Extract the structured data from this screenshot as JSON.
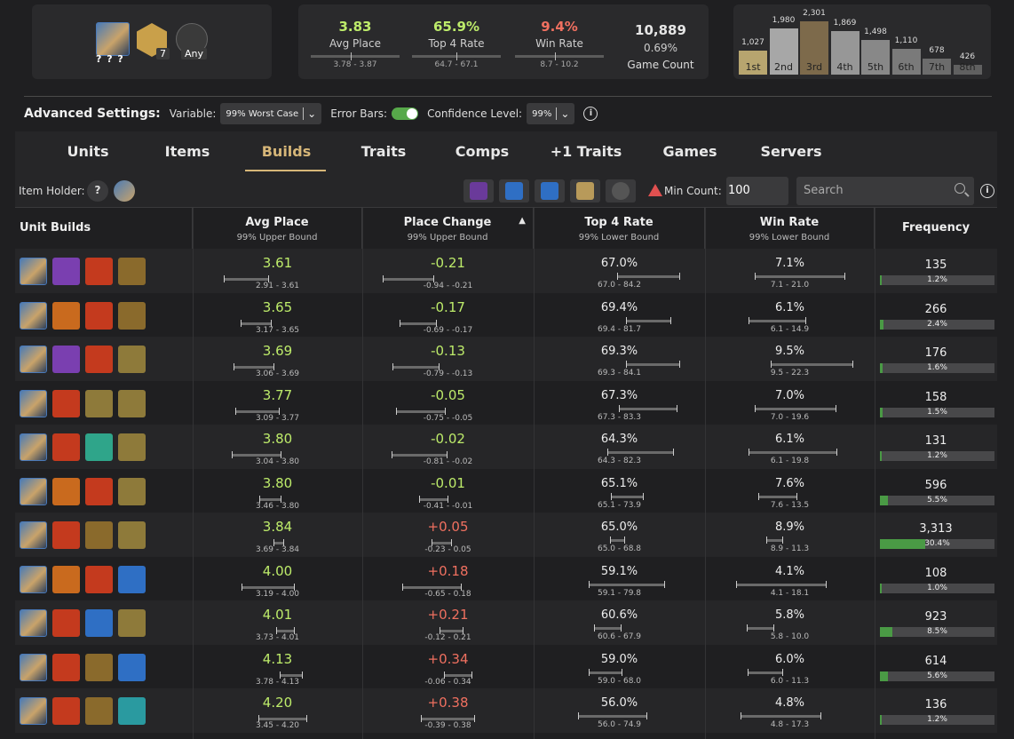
{
  "header": {
    "unit_icon_label": "? ? ?",
    "badge1_count": "7",
    "badge2_label": "Any",
    "stats": [
      {
        "value": "3.83",
        "label": "Avg Place",
        "range": "3.78 - 3.87",
        "color": "#bdeb6a",
        "tick": 0.45
      },
      {
        "value": "65.9%",
        "label": "Top 4 Rate",
        "range": "64.7 - 67.1",
        "color": "#bdeb6a",
        "tick": 0.5
      },
      {
        "value": "9.4%",
        "label": "Win Rate",
        "range": "8.7 - 10.2",
        "color": "#f07060",
        "tick": 0.45
      }
    ],
    "game_count": "10,889",
    "game_pct": "0.69%",
    "game_label": "Game Count",
    "histogram": [
      {
        "label": "1st",
        "value": "1,027",
        "n": 1027,
        "color": "#b7a56f"
      },
      {
        "label": "2nd",
        "value": "1,980",
        "n": 1980,
        "color": "#a7a7a7"
      },
      {
        "label": "3rd",
        "value": "2,301",
        "n": 2301,
        "color": "#7d6a4b"
      },
      {
        "label": "4th",
        "value": "1,869",
        "n": 1869,
        "color": "#979797"
      },
      {
        "label": "5th",
        "value": "1,498",
        "n": 1498,
        "color": "#888888"
      },
      {
        "label": "6th",
        "value": "1,110",
        "n": 1110,
        "color": "#7a7a7a"
      },
      {
        "label": "7th",
        "value": "678",
        "n": 678,
        "color": "#6c6c6c"
      },
      {
        "label": "8th",
        "value": "426",
        "n": 426,
        "color": "#606060"
      }
    ]
  },
  "settings": {
    "title": "Advanced Settings:",
    "variable_label": "Variable:",
    "variable_value": "99% Worst Case",
    "error_bars_label": "Error Bars:",
    "confidence_label": "Confidence Level:",
    "confidence_value": "99%"
  },
  "tabs": [
    "Units",
    "Items",
    "Builds",
    "Traits",
    "Comps",
    "+1 Traits",
    "Games",
    "Servers"
  ],
  "toolbar": {
    "item_holder_label": "Item Holder:",
    "unknown_symbol": "?",
    "min_count_label": "Min Count:",
    "min_count_value": "100",
    "search_placeholder": "Search"
  },
  "columns": [
    {
      "title": "Unit Builds",
      "sub": ""
    },
    {
      "title": "Avg Place",
      "sub": "99% Upper Bound"
    },
    {
      "title": "Place Change",
      "sub": "99% Upper Bound",
      "sort": "▲"
    },
    {
      "title": "Top 4 Rate",
      "sub": "99% Lower Bound"
    },
    {
      "title": "Win Rate",
      "sub": "99% Lower Bound"
    },
    {
      "title": "Frequency",
      "sub": ""
    }
  ],
  "rows": [
    {
      "items": [
        "#7a3fb0",
        "#c43a1e",
        "#8a6a2c"
      ],
      "avg": "3.61",
      "avg_r": "2.91 - 3.61",
      "chg": "-0.21",
      "chg_r": "-0.94 - -0.21",
      "t4": "67.0%",
      "t4_r": "67.0 - 84.2",
      "win": "7.1%",
      "win_r": "7.1 - 21.0",
      "freq": "135",
      "freq_pct": "1.2%",
      "f": 0.012
    },
    {
      "items": [
        "#c96a1e",
        "#c43a1e",
        "#8a6a2c"
      ],
      "avg": "3.65",
      "avg_r": "3.17 - 3.65",
      "chg": "-0.17",
      "chg_r": "-0.69 - -0.17",
      "t4": "69.4%",
      "t4_r": "69.4 - 81.7",
      "win": "6.1%",
      "win_r": "6.1 - 14.9",
      "freq": "266",
      "freq_pct": "2.4%",
      "f": 0.024
    },
    {
      "items": [
        "#7a3fb0",
        "#c43a1e",
        "#8e7a3a"
      ],
      "avg": "3.69",
      "avg_r": "3.06 - 3.69",
      "chg": "-0.13",
      "chg_r": "-0.79 - -0.13",
      "t4": "69.3%",
      "t4_r": "69.3 - 84.1",
      "win": "9.5%",
      "win_r": "9.5 - 22.3",
      "freq": "176",
      "freq_pct": "1.6%",
      "f": 0.016
    },
    {
      "items": [
        "#c43a1e",
        "#8e7a3a",
        "#8e7a3a"
      ],
      "avg": "3.77",
      "avg_r": "3.09 - 3.77",
      "chg": "-0.05",
      "chg_r": "-0.75 - -0.05",
      "t4": "67.3%",
      "t4_r": "67.3 - 83.3",
      "win": "7.0%",
      "win_r": "7.0 - 19.6",
      "freq": "158",
      "freq_pct": "1.5%",
      "f": 0.015
    },
    {
      "items": [
        "#c43a1e",
        "#2fa58a",
        "#8e7a3a"
      ],
      "avg": "3.80",
      "avg_r": "3.04 - 3.80",
      "chg": "-0.02",
      "chg_r": "-0.81 - -0.02",
      "t4": "64.3%",
      "t4_r": "64.3 - 82.3",
      "win": "6.1%",
      "win_r": "6.1 - 19.8",
      "freq": "131",
      "freq_pct": "1.2%",
      "f": 0.012
    },
    {
      "items": [
        "#c96a1e",
        "#c43a1e",
        "#8e7a3a"
      ],
      "avg": "3.80",
      "avg_r": "3.46 - 3.80",
      "chg": "-0.01",
      "chg_r": "-0.41 - -0.01",
      "t4": "65.1%",
      "t4_r": "65.1 - 73.9",
      "win": "7.6%",
      "win_r": "7.6 - 13.5",
      "freq": "596",
      "freq_pct": "5.5%",
      "f": 0.055
    },
    {
      "items": [
        "#c43a1e",
        "#8a6a2c",
        "#8e7a3a"
      ],
      "avg": "3.84",
      "avg_r": "3.69 - 3.84",
      "chg": "+0.05",
      "chg_r": "-0.23 - 0.05",
      "t4": "65.0%",
      "t4_r": "65.0 - 68.8",
      "win": "8.9%",
      "win_r": "8.9 - 11.3",
      "freq": "3,313",
      "freq_pct": "30.4%",
      "f": 0.304
    },
    {
      "items": [
        "#c96a1e",
        "#c43a1e",
        "#2f6fc4"
      ],
      "avg": "4.00",
      "avg_r": "3.19 - 4.00",
      "chg": "+0.18",
      "chg_r": "-0.65 - 0.18",
      "t4": "59.1%",
      "t4_r": "59.1 - 79.8",
      "win": "4.1%",
      "win_r": "4.1 - 18.1",
      "freq": "108",
      "freq_pct": "1.0%",
      "f": 0.01
    },
    {
      "items": [
        "#c43a1e",
        "#2f6fc4",
        "#8e7a3a"
      ],
      "avg": "4.01",
      "avg_r": "3.73 - 4.01",
      "chg": "+0.21",
      "chg_r": "-0.12 - 0.21",
      "t4": "60.6%",
      "t4_r": "60.6 - 67.9",
      "win": "5.8%",
      "win_r": "5.8 - 10.0",
      "freq": "923",
      "freq_pct": "8.5%",
      "f": 0.085
    },
    {
      "items": [
        "#c43a1e",
        "#8a6a2c",
        "#2f6fc4"
      ],
      "avg": "4.13",
      "avg_r": "3.78 - 4.13",
      "chg": "+0.34",
      "chg_r": "-0.06 - 0.34",
      "t4": "59.0%",
      "t4_r": "59.0 - 68.0",
      "win": "6.0%",
      "win_r": "6.0 - 11.3",
      "freq": "614",
      "freq_pct": "5.6%",
      "f": 0.056
    },
    {
      "items": [
        "#c43a1e",
        "#8a6a2c",
        "#2a9aa0"
      ],
      "avg": "4.20",
      "avg_r": "3.45 - 4.20",
      "chg": "+0.38",
      "chg_r": "-0.39 - 0.38",
      "t4": "56.0%",
      "t4_r": "56.0 - 74.9",
      "win": "4.8%",
      "win_r": "4.8 - 17.3",
      "freq": "136",
      "freq_pct": "1.2%",
      "f": 0.012
    }
  ]
}
